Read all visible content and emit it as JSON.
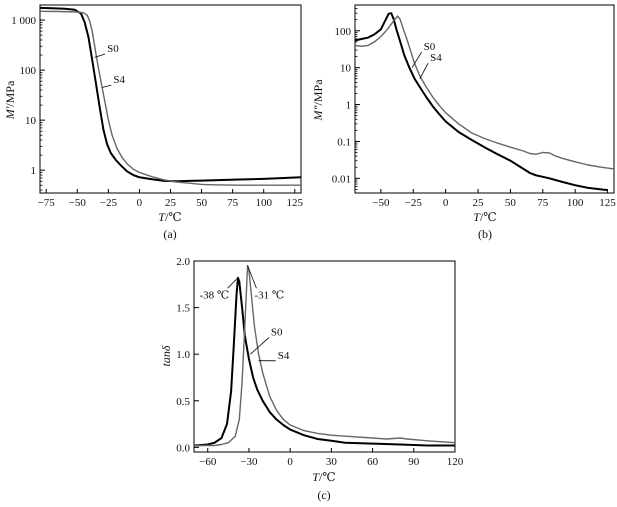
{
  "figure": {
    "panel_labels": [
      "(a)",
      "(b)",
      "(c)"
    ]
  },
  "colors": {
    "S0": "#000000",
    "S4": "#666666"
  },
  "chart_data": [
    {
      "type": "line",
      "panel": "(a)",
      "xlabel_var": "T",
      "xlabel_unit": "/℃",
      "ylabel_var": "M'",
      "ylabel_unit": "/MPa",
      "xlim": [
        -80,
        130
      ],
      "ylim": [
        0.35,
        2000
      ],
      "yscale": "log",
      "xticks": [
        -75,
        -50,
        -25,
        0,
        25,
        50,
        75,
        100,
        125
      ],
      "yticks": [
        1,
        10,
        100,
        1000
      ],
      "ytick_labels": [
        "1",
        "10",
        "100",
        "1 000"
      ],
      "labels": [
        {
          "text": "S0",
          "series": "S0",
          "at": [
            -36,
            180
          ],
          "pos": [
            -26,
            230
          ]
        },
        {
          "text": "S4",
          "series": "S4",
          "at": [
            -30,
            45
          ],
          "pos": [
            -21,
            55
          ]
        }
      ],
      "series": [
        {
          "name": "S0",
          "color": "#000000",
          "points": [
            [
              -80,
              1750
            ],
            [
              -70,
              1720
            ],
            [
              -60,
              1680
            ],
            [
              -52,
              1600
            ],
            [
              -47,
              1350
            ],
            [
              -44,
              900
            ],
            [
              -41,
              450
            ],
            [
              -38,
              160
            ],
            [
              -35,
              55
            ],
            [
              -32,
              18
            ],
            [
              -29,
              6.5
            ],
            [
              -26,
              3.3
            ],
            [
              -23,
              2.2
            ],
            [
              -19,
              1.6
            ],
            [
              -15,
              1.25
            ],
            [
              -10,
              0.95
            ],
            [
              -5,
              0.8
            ],
            [
              0,
              0.72
            ],
            [
              10,
              0.66
            ],
            [
              20,
              0.61
            ],
            [
              30,
              0.6
            ],
            [
              40,
              0.61
            ],
            [
              50,
              0.62
            ],
            [
              60,
              0.63
            ],
            [
              80,
              0.65
            ],
            [
              100,
              0.67
            ],
            [
              130,
              0.72
            ]
          ]
        },
        {
          "name": "S4",
          "color": "#666666",
          "points": [
            [
              -80,
              1500
            ],
            [
              -65,
              1480
            ],
            [
              -50,
              1450
            ],
            [
              -45,
              1400
            ],
            [
              -42,
              1250
            ],
            [
              -40,
              950
            ],
            [
              -38,
              600
            ],
            [
              -36,
              300
            ],
            [
              -34,
              150
            ],
            [
              -31,
              60
            ],
            [
              -28,
              25
            ],
            [
              -25,
              10
            ],
            [
              -22,
              5
            ],
            [
              -18,
              2.7
            ],
            [
              -14,
              1.8
            ],
            [
              -10,
              1.35
            ],
            [
              -5,
              1.05
            ],
            [
              0,
              0.9
            ],
            [
              10,
              0.74
            ],
            [
              20,
              0.64
            ],
            [
              30,
              0.58
            ],
            [
              40,
              0.55
            ],
            [
              50,
              0.52
            ],
            [
              60,
              0.51
            ],
            [
              80,
              0.5
            ],
            [
              100,
              0.5
            ],
            [
              130,
              0.5
            ]
          ]
        }
      ]
    },
    {
      "type": "line",
      "panel": "(b)",
      "xlabel_var": "T",
      "xlabel_unit": "/℃",
      "ylabel_var": "M\"",
      "ylabel_unit": "/MPa",
      "xlim": [
        -70,
        130
      ],
      "ylim": [
        0.004,
        500
      ],
      "yscale": "log",
      "xticks": [
        -50,
        -25,
        0,
        25,
        50,
        75,
        100,
        125
      ],
      "yticks": [
        0.01,
        0.1,
        1,
        10,
        100
      ],
      "ytick_labels": [
        "0.01",
        "0.1",
        "1",
        "10",
        "100"
      ],
      "labels": [
        {
          "text": "S0",
          "series": "S0",
          "at": [
            -26,
            10
          ],
          "pos": [
            -17,
            30
          ]
        },
        {
          "text": "S4",
          "series": "S4",
          "at": [
            -20,
            5
          ],
          "pos": [
            -12,
            15
          ]
        }
      ],
      "series": [
        {
          "name": "S0",
          "color": "#000000",
          "points": [
            [
              -70,
              55
            ],
            [
              -65,
              60
            ],
            [
              -60,
              65
            ],
            [
              -55,
              80
            ],
            [
              -50,
              110
            ],
            [
              -47,
              180
            ],
            [
              -44,
              290
            ],
            [
              -42,
              300
            ],
            [
              -40,
              200
            ],
            [
              -38,
              110
            ],
            [
              -35,
              50
            ],
            [
              -32,
              22
            ],
            [
              -28,
              10
            ],
            [
              -24,
              5
            ],
            [
              -20,
              3
            ],
            [
              -15,
              1.6
            ],
            [
              -10,
              0.9
            ],
            [
              -5,
              0.55
            ],
            [
              0,
              0.35
            ],
            [
              10,
              0.18
            ],
            [
              20,
              0.11
            ],
            [
              30,
              0.07
            ],
            [
              40,
              0.045
            ],
            [
              50,
              0.03
            ],
            [
              60,
              0.018
            ],
            [
              65,
              0.014
            ],
            [
              70,
              0.012
            ],
            [
              75,
              0.011
            ],
            [
              80,
              0.01
            ],
            [
              90,
              0.008
            ],
            [
              100,
              0.0065
            ],
            [
              110,
              0.0055
            ],
            [
              120,
              0.005
            ],
            [
              125,
              0.0048
            ]
          ]
        },
        {
          "name": "S4",
          "color": "#666666",
          "points": [
            [
              -70,
              40
            ],
            [
              -65,
              38
            ],
            [
              -60,
              40
            ],
            [
              -55,
              50
            ],
            [
              -50,
              70
            ],
            [
              -45,
              110
            ],
            [
              -40,
              190
            ],
            [
              -37,
              250
            ],
            [
              -35,
              200
            ],
            [
              -33,
              120
            ],
            [
              -30,
              60
            ],
            [
              -27,
              28
            ],
            [
              -24,
              13
            ],
            [
              -20,
              6
            ],
            [
              -15,
              3
            ],
            [
              -10,
              1.6
            ],
            [
              -5,
              0.95
            ],
            [
              0,
              0.6
            ],
            [
              10,
              0.3
            ],
            [
              20,
              0.17
            ],
            [
              30,
              0.12
            ],
            [
              40,
              0.09
            ],
            [
              50,
              0.07
            ],
            [
              60,
              0.055
            ],
            [
              65,
              0.047
            ],
            [
              70,
              0.045
            ],
            [
              75,
              0.05
            ],
            [
              80,
              0.049
            ],
            [
              85,
              0.04
            ],
            [
              90,
              0.035
            ],
            [
              100,
              0.028
            ],
            [
              110,
              0.023
            ],
            [
              120,
              0.02
            ],
            [
              130,
              0.018
            ]
          ]
        }
      ]
    },
    {
      "type": "line",
      "panel": "(c)",
      "xlabel_var": "T",
      "xlabel_unit": "/℃",
      "ylabel_var": "tanδ",
      "ylabel_unit": "",
      "xlim": [
        -70,
        120
      ],
      "ylim": [
        -0.05,
        2.0
      ],
      "yscale": "linear",
      "xticks": [
        -60,
        -30,
        0,
        30,
        60,
        90,
        120
      ],
      "yticks": [
        0.0,
        0.5,
        1.0,
        1.5,
        2.0
      ],
      "ytick_labels": [
        "0.0",
        "0.5",
        "1.0",
        "1.5",
        "2.0"
      ],
      "annotations": [
        {
          "text": "-38 ℃",
          "series": "S0",
          "at": [
            -38,
            1.82
          ],
          "pos": [
            -66,
            1.6
          ]
        },
        {
          "text": "-31 ℃",
          "series": "S4",
          "at": [
            -31,
            1.95
          ],
          "pos": [
            -26,
            1.6
          ]
        }
      ],
      "labels": [
        {
          "text": "S0",
          "series": "S0",
          "at": [
            -29,
            1.0
          ],
          "pos": [
            -14,
            1.2
          ]
        },
        {
          "text": "S4",
          "series": "S4",
          "at": [
            -23,
            0.93
          ],
          "pos": [
            -9,
            0.95
          ]
        }
      ],
      "series": [
        {
          "name": "S0",
          "color": "#000000",
          "points": [
            [
              -70,
              0.02
            ],
            [
              -60,
              0.03
            ],
            [
              -55,
              0.05
            ],
            [
              -50,
              0.1
            ],
            [
              -46,
              0.25
            ],
            [
              -43,
              0.6
            ],
            [
              -41,
              1.1
            ],
            [
              -39,
              1.65
            ],
            [
              -38,
              1.82
            ],
            [
              -37,
              1.78
            ],
            [
              -35,
              1.5
            ],
            [
              -33,
              1.2
            ],
            [
              -30,
              0.95
            ],
            [
              -27,
              0.75
            ],
            [
              -24,
              0.62
            ],
            [
              -20,
              0.5
            ],
            [
              -15,
              0.38
            ],
            [
              -10,
              0.3
            ],
            [
              -5,
              0.24
            ],
            [
              0,
              0.19
            ],
            [
              10,
              0.13
            ],
            [
              20,
              0.09
            ],
            [
              30,
              0.07
            ],
            [
              40,
              0.05
            ],
            [
              60,
              0.04
            ],
            [
              80,
              0.03
            ],
            [
              100,
              0.02
            ],
            [
              120,
              0.02
            ]
          ]
        },
        {
          "name": "S4",
          "color": "#666666",
          "points": [
            [
              -70,
              0.02
            ],
            [
              -55,
              0.02
            ],
            [
              -50,
              0.03
            ],
            [
              -45,
              0.05
            ],
            [
              -40,
              0.12
            ],
            [
              -37,
              0.3
            ],
            [
              -35,
              0.7
            ],
            [
              -33,
              1.3
            ],
            [
              -31,
              1.95
            ],
            [
              -30,
              1.9
            ],
            [
              -28,
              1.6
            ],
            [
              -26,
              1.3
            ],
            [
              -23,
              1.0
            ],
            [
              -20,
              0.8
            ],
            [
              -15,
              0.55
            ],
            [
              -10,
              0.4
            ],
            [
              -5,
              0.3
            ],
            [
              0,
              0.24
            ],
            [
              10,
              0.18
            ],
            [
              20,
              0.15
            ],
            [
              30,
              0.13
            ],
            [
              40,
              0.12
            ],
            [
              60,
              0.1
            ],
            [
              70,
              0.09
            ],
            [
              75,
              0.095
            ],
            [
              80,
              0.1
            ],
            [
              85,
              0.09
            ],
            [
              100,
              0.07
            ],
            [
              120,
              0.05
            ]
          ]
        }
      ]
    }
  ]
}
